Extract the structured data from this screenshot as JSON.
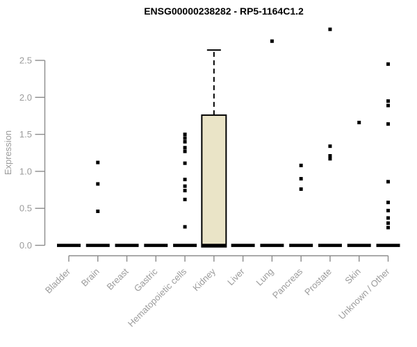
{
  "chart_data": {
    "type": "boxplot",
    "title": "ENSG00000238282 - RP5-1164C1.2",
    "ylabel": "Expression",
    "xlabel": "",
    "grid": false,
    "legend": "none",
    "yticks": [
      0.0,
      0.5,
      1.0,
      1.5,
      2.0,
      2.5
    ],
    "ylim": [
      0,
      2.95
    ],
    "colors": {
      "box_fill": "#EAE4C7",
      "box_stroke": "#000000",
      "point": "#000000",
      "axis": "#8b8b8b",
      "tick_label": "#9b9b9b",
      "title": "#000000"
    },
    "categories": [
      "Bladder",
      "Brain",
      "Breast",
      "Gastric",
      "Hematopoietic cells",
      "Kidney",
      "Liver",
      "Lung",
      "Pancreas",
      "Prostate",
      "Skin",
      "Unknown / Other"
    ],
    "boxes": [
      {
        "category": "Bladder",
        "q1": 0,
        "median": 0,
        "q3": 0,
        "whisker_low": 0,
        "whisker_high": 0,
        "outliers": []
      },
      {
        "category": "Brain",
        "q1": 0,
        "median": 0,
        "q3": 0,
        "whisker_low": 0,
        "whisker_high": 0,
        "outliers": [
          1.12,
          0.83,
          0.46
        ]
      },
      {
        "category": "Breast",
        "q1": 0,
        "median": 0,
        "q3": 0,
        "whisker_low": 0,
        "whisker_high": 0,
        "outliers": []
      },
      {
        "category": "Gastric",
        "q1": 0,
        "median": 0,
        "q3": 0,
        "whisker_low": 0,
        "whisker_high": 0,
        "outliers": []
      },
      {
        "category": "Hematopoietic cells",
        "q1": 0,
        "median": 0,
        "q3": 0,
        "whisker_low": 0,
        "whisker_high": 0,
        "outliers": [
          1.5,
          1.45,
          1.4,
          1.32,
          1.27,
          1.11,
          0.89,
          0.8,
          0.74,
          0.62,
          0.25
        ]
      },
      {
        "category": "Kidney",
        "q1": 0,
        "median": 0,
        "q3": 1.76,
        "whisker_low": 0,
        "whisker_high": 2.64,
        "outliers": []
      },
      {
        "category": "Liver",
        "q1": 0,
        "median": 0,
        "q3": 0,
        "whisker_low": 0,
        "whisker_high": 0,
        "outliers": []
      },
      {
        "category": "Lung",
        "q1": 0,
        "median": 0,
        "q3": 0,
        "whisker_low": 0,
        "whisker_high": 0,
        "outliers": [
          2.76
        ]
      },
      {
        "category": "Pancreas",
        "q1": 0,
        "median": 0,
        "q3": 0,
        "whisker_low": 0,
        "whisker_high": 0,
        "outliers": [
          1.08,
          0.9,
          0.76
        ]
      },
      {
        "category": "Prostate",
        "q1": 0,
        "median": 0,
        "q3": 0,
        "whisker_low": 0,
        "whisker_high": 0,
        "outliers": [
          2.92,
          1.34,
          1.21,
          1.17
        ]
      },
      {
        "category": "Skin",
        "q1": 0,
        "median": 0,
        "q3": 0,
        "whisker_low": 0,
        "whisker_high": 0,
        "outliers": [
          1.66
        ]
      },
      {
        "category": "Unknown / Other",
        "q1": 0,
        "median": 0,
        "q3": 0,
        "whisker_low": 0,
        "whisker_high": 0,
        "outliers": [
          2.45,
          1.95,
          1.89,
          1.64,
          0.86,
          0.58,
          0.47,
          0.37,
          0.3,
          0.24
        ]
      }
    ]
  }
}
